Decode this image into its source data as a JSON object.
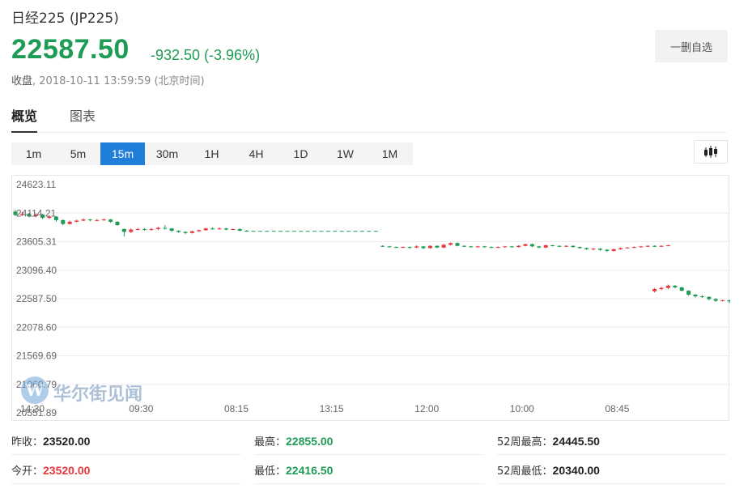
{
  "header": {
    "title": "日经225  (JP225)",
    "price": "22587.50",
    "change": "-932.50 (-3.96%)",
    "status_label": "收盘",
    "timestamp": ", 2018-10-11 13:59:59 (北京时间)",
    "watchlist_button": "一删自选"
  },
  "tabs": [
    {
      "label": "概览",
      "active": true
    },
    {
      "label": "图表",
      "active": false
    }
  ],
  "periods": [
    {
      "label": "1m"
    },
    {
      "label": "5m"
    },
    {
      "label": "15m",
      "active": true
    },
    {
      "label": "30m"
    },
    {
      "label": "1H"
    },
    {
      "label": "4H"
    },
    {
      "label": "1D"
    },
    {
      "label": "1W"
    },
    {
      "label": "1M"
    }
  ],
  "icons": {
    "chart_type": "candlestick-icon",
    "watermark_logo": "wallstreetcn-logo-icon"
  },
  "watermark": {
    "logo_letter": "W",
    "text": "华尔街见闻"
  },
  "colors": {
    "up": "#e8383d",
    "down": "#1e9c55",
    "accent": "#1f7ed8"
  },
  "chart_data": {
    "type": "candlestick",
    "y_ticks": [
      "24623.11",
      "24114.21",
      "23605.31",
      "23096.40",
      "22587.50",
      "22078.60",
      "21569.69",
      "21060.79",
      "20551.89"
    ],
    "ylim": [
      20551.89,
      24623.11
    ],
    "x_ticks": [
      {
        "label": "14:30",
        "index": 2.5
      },
      {
        "label": "09:30",
        "index": 18.5
      },
      {
        "label": "08:15",
        "index": 32.5
      },
      {
        "label": "13:15",
        "index": 46.5
      },
      {
        "label": "12:00",
        "index": 60.5
      },
      {
        "label": "10:00",
        "index": 74.5
      },
      {
        "label": "08:45",
        "index": 88.5
      }
    ],
    "x_count": 106,
    "grid": true,
    "segments": [
      {
        "start": 0,
        "candles": [
          [
            24140,
            24080,
            24170,
            24060
          ],
          [
            24080,
            24100,
            24140,
            24060
          ],
          [
            24100,
            24060,
            24120,
            24040
          ],
          [
            24060,
            24090,
            24110,
            24040
          ],
          [
            24090,
            24030,
            24100,
            24010
          ],
          [
            24030,
            24050,
            24070,
            24010
          ],
          [
            24050,
            23990,
            24060,
            23960
          ],
          [
            23990,
            23920,
            24000,
            23900
          ],
          [
            23920,
            23960,
            23980,
            23910
          ],
          [
            23960,
            23980,
            24000,
            23950
          ],
          [
            23980,
            24000,
            24020,
            23970
          ],
          [
            24000,
            23990,
            24010,
            23970
          ],
          [
            23990,
            23990,
            24010,
            23970
          ],
          [
            23990,
            24000,
            24020,
            23980
          ],
          [
            24000,
            23960,
            24010,
            23940
          ],
          [
            23960,
            23900,
            23970,
            23890
          ],
          [
            23830,
            23780,
            23840,
            23700
          ],
          [
            23780,
            23820,
            23840,
            23760
          ],
          [
            23820,
            23830,
            23850,
            23810
          ],
          [
            23830,
            23820,
            23850,
            23800
          ],
          [
            23820,
            23830,
            23850,
            23800
          ],
          [
            23830,
            23850,
            23870,
            23810
          ],
          [
            23850,
            23840,
            23900,
            23820
          ],
          [
            23840,
            23800,
            23850,
            23780
          ],
          [
            23800,
            23780,
            23810,
            23760
          ],
          [
            23780,
            23760,
            23790,
            23740
          ],
          [
            23760,
            23790,
            23800,
            23750
          ],
          [
            23790,
            23810,
            23820,
            23780
          ],
          [
            23810,
            23840,
            23850,
            23800
          ],
          [
            23840,
            23830,
            23860,
            23820
          ],
          [
            23830,
            23840,
            23860,
            23820
          ],
          [
            23840,
            23820,
            23850,
            23810
          ],
          [
            23820,
            23830,
            23840,
            23810
          ],
          [
            23830,
            23800,
            23840,
            23790
          ],
          [
            23800,
            23790,
            23810,
            23780
          ]
        ],
        "flat_from": 35,
        "flat_to": 54,
        "flat_value": 23790
      },
      {
        "start": 54,
        "candles": [
          [
            23530,
            23520,
            23540,
            23510
          ],
          [
            23520,
            23510,
            23530,
            23500
          ],
          [
            23510,
            23500,
            23520,
            23490
          ],
          [
            23500,
            23510,
            23520,
            23490
          ],
          [
            23510,
            23500,
            23520,
            23480
          ],
          [
            23500,
            23520,
            23540,
            23490
          ],
          [
            23520,
            23490,
            23530,
            23470
          ],
          [
            23490,
            23530,
            23540,
            23480
          ],
          [
            23530,
            23500,
            23540,
            23490
          ],
          [
            23500,
            23550,
            23560,
            23490
          ],
          [
            23550,
            23580,
            23590,
            23540
          ],
          [
            23580,
            23530,
            23590,
            23520
          ],
          [
            23530,
            23520,
            23540,
            23510
          ],
          [
            23520,
            23510,
            23530,
            23500
          ],
          [
            23510,
            23520,
            23530,
            23500
          ],
          [
            23520,
            23510,
            23530,
            23500
          ],
          [
            23510,
            23500,
            23520,
            23490
          ],
          [
            23500,
            23510,
            23520,
            23490
          ],
          [
            23510,
            23520,
            23530,
            23500
          ],
          [
            23520,
            23510,
            23530,
            23500
          ],
          [
            23510,
            23530,
            23540,
            23500
          ],
          [
            23530,
            23560,
            23570,
            23520
          ],
          [
            23560,
            23520,
            23570,
            23510
          ],
          [
            23520,
            23500,
            23530,
            23490
          ],
          [
            23500,
            23540,
            23550,
            23490
          ],
          [
            23540,
            23530,
            23550,
            23520
          ],
          [
            23530,
            23520,
            23540,
            23510
          ],
          [
            23520,
            23530,
            23540,
            23510
          ],
          [
            23530,
            23510,
            23540,
            23500
          ],
          [
            23510,
            23490,
            23520,
            23480
          ],
          [
            23490,
            23470,
            23500,
            23460
          ],
          [
            23470,
            23480,
            23490,
            23450
          ],
          [
            23480,
            23460,
            23490,
            23440
          ],
          [
            23460,
            23440,
            23470,
            23420
          ],
          [
            23440,
            23470,
            23480,
            23430
          ],
          [
            23470,
            23490,
            23500,
            23460
          ],
          [
            23490,
            23500,
            23510,
            23480
          ],
          [
            23500,
            23510,
            23520,
            23490
          ],
          [
            23510,
            23520,
            23530,
            23500
          ],
          [
            23520,
            23530,
            23540,
            23510
          ],
          [
            23530,
            23520,
            23540,
            23510
          ],
          [
            23520,
            23530,
            23540,
            23510
          ],
          [
            23530,
            23540,
            23550,
            23520
          ]
        ],
        "flat_from": 97,
        "flat_to": 97,
        "flat_value": 23540
      },
      {
        "start": 94,
        "candles": [
          [
            22720,
            22760,
            22780,
            22700
          ],
          [
            22760,
            22780,
            22800,
            22740
          ],
          [
            22780,
            22820,
            22840,
            22760
          ],
          [
            22820,
            22790,
            22830,
            22770
          ],
          [
            22790,
            22730,
            22800,
            22720
          ],
          [
            22730,
            22660,
            22740,
            22640
          ],
          [
            22660,
            22630,
            22670,
            22610
          ],
          [
            22630,
            22620,
            22650,
            22600
          ],
          [
            22620,
            22580,
            22630,
            22560
          ],
          [
            22580,
            22550,
            22600,
            22530
          ],
          [
            22550,
            22560,
            22570,
            22540
          ],
          [
            22560,
            22540,
            22570,
            22510
          ],
          [
            22540,
            22500,
            22550,
            22490
          ],
          [
            22500,
            22580,
            22600,
            22490
          ],
          [
            22580,
            22530,
            22590,
            22510
          ],
          [
            22530,
            22520,
            22550,
            22500
          ],
          [
            22520,
            22510,
            22540,
            22490
          ],
          [
            22510,
            22480,
            22520,
            22460
          ],
          [
            22480,
            22560,
            22580,
            22470
          ]
        ],
        "flat_from": 0,
        "flat_to": 0,
        "flat_value": 0
      }
    ]
  },
  "stats": [
    {
      "label": "昨收：",
      "value": "23520.00",
      "tone": "dark"
    },
    {
      "label": "最高：",
      "value": "22855.00",
      "tone": "green"
    },
    {
      "label": "52周最高：",
      "value": "24445.50",
      "tone": "dark"
    },
    {
      "label": "今开：",
      "value": "23520.00",
      "tone": "red"
    },
    {
      "label": "最低：",
      "value": "22416.50",
      "tone": "green"
    },
    {
      "label": "52周最低：",
      "value": "20340.00",
      "tone": "dark"
    }
  ]
}
